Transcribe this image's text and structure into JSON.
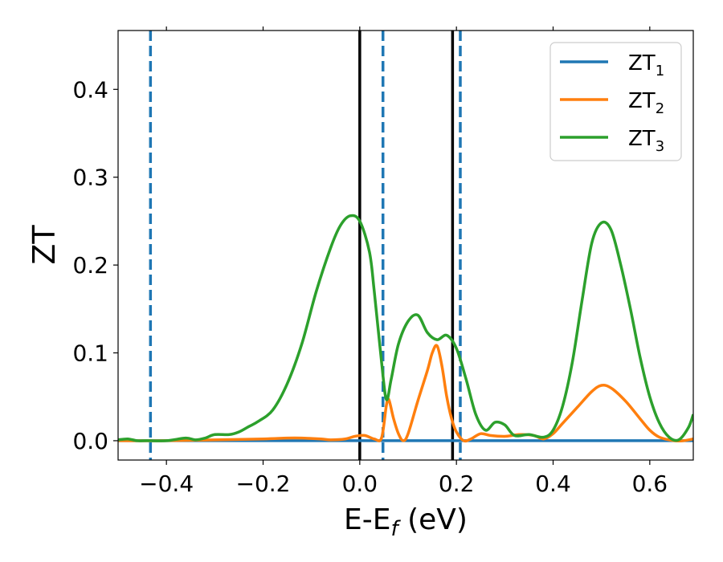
{
  "chart_data": {
    "type": "line",
    "title": "",
    "xlabel_main": "E-E",
    "xlabel_sub": "f",
    "xlabel_unit": " (eV)",
    "ylabel": "ZT",
    "xlim": [
      -0.5,
      0.69
    ],
    "ylim": [
      -0.022,
      0.467
    ],
    "x_ticks": [
      -0.4,
      -0.2,
      0.0,
      0.2,
      0.4,
      0.6
    ],
    "x_tick_labels": [
      "−0.4",
      "−0.2",
      "0.0",
      "0.2",
      "0.4",
      "0.6"
    ],
    "y_ticks": [
      0.0,
      0.1,
      0.2,
      0.3,
      0.4
    ],
    "y_tick_labels": [
      "0.0",
      "0.1",
      "0.2",
      "0.3",
      "0.4"
    ],
    "grid": false,
    "legend_position": "top-right",
    "series": [
      {
        "label_main": "ZT",
        "label_sub": "1",
        "color": "#1f77b4",
        "x": [
          -0.5,
          0.69
        ],
        "y": [
          0.0,
          0.0
        ]
      },
      {
        "label_main": "ZT",
        "label_sub": "2",
        "color": "#ff7f0e",
        "x": [
          -0.5,
          -0.4,
          -0.3,
          -0.2,
          -0.15,
          -0.12,
          -0.08,
          -0.06,
          -0.03,
          -0.01,
          0.01,
          0.03,
          0.045,
          0.055,
          0.06,
          0.07,
          0.08,
          0.09,
          0.1,
          0.12,
          0.14,
          0.15,
          0.16,
          0.17,
          0.18,
          0.19,
          0.2,
          0.215,
          0.23,
          0.25,
          0.27,
          0.3,
          0.33,
          0.36,
          0.38,
          0.4,
          0.42,
          0.45,
          0.48,
          0.5,
          0.52,
          0.55,
          0.58,
          0.6,
          0.62,
          0.65,
          0.67,
          0.69
        ],
        "y": [
          0.0,
          0.0,
          0.001,
          0.002,
          0.003,
          0.003,
          0.002,
          0.001,
          0.002,
          0.005,
          0.006,
          0.002,
          0.003,
          0.04,
          0.047,
          0.025,
          0.008,
          0.0,
          0.008,
          0.045,
          0.08,
          0.1,
          0.108,
          0.085,
          0.05,
          0.025,
          0.01,
          0.0,
          0.002,
          0.008,
          0.006,
          0.005,
          0.007,
          0.006,
          0.002,
          0.008,
          0.02,
          0.038,
          0.056,
          0.063,
          0.06,
          0.045,
          0.025,
          0.012,
          0.004,
          0.0,
          0.0,
          0.002
        ]
      },
      {
        "label_main": "ZT",
        "label_sub": "3",
        "color": "#2ca02c",
        "x": [
          -0.5,
          -0.48,
          -0.46,
          -0.44,
          -0.4,
          -0.36,
          -0.34,
          -0.32,
          -0.3,
          -0.27,
          -0.25,
          -0.23,
          -0.21,
          -0.18,
          -0.15,
          -0.12,
          -0.09,
          -0.06,
          -0.04,
          -0.02,
          0.0,
          0.02,
          0.03,
          0.045,
          0.055,
          0.065,
          0.08,
          0.1,
          0.12,
          0.14,
          0.16,
          0.18,
          0.2,
          0.22,
          0.24,
          0.26,
          0.28,
          0.3,
          0.32,
          0.35,
          0.38,
          0.4,
          0.42,
          0.44,
          0.46,
          0.48,
          0.5,
          0.52,
          0.54,
          0.56,
          0.58,
          0.6,
          0.62,
          0.64,
          0.66,
          0.68,
          0.69
        ],
        "y": [
          0.001,
          0.002,
          0.0,
          0.0,
          0.0,
          0.003,
          0.001,
          0.003,
          0.007,
          0.007,
          0.01,
          0.016,
          0.022,
          0.035,
          0.065,
          0.11,
          0.17,
          0.22,
          0.245,
          0.256,
          0.25,
          0.215,
          0.17,
          0.09,
          0.047,
          0.07,
          0.11,
          0.136,
          0.143,
          0.123,
          0.115,
          0.12,
          0.105,
          0.07,
          0.03,
          0.012,
          0.021,
          0.018,
          0.006,
          0.007,
          0.004,
          0.012,
          0.04,
          0.09,
          0.16,
          0.225,
          0.248,
          0.24,
          0.2,
          0.15,
          0.095,
          0.05,
          0.02,
          0.004,
          0.001,
          0.015,
          0.03
        ]
      }
    ],
    "vlines": [
      {
        "x": -0.433,
        "color": "#1f77b4",
        "style": "dashed"
      },
      {
        "x": 0.048,
        "color": "#1f77b4",
        "style": "dashed"
      },
      {
        "x": 0.208,
        "color": "#1f77b4",
        "style": "dashed"
      },
      {
        "x": 0.0,
        "color": "#000000",
        "style": "solid"
      },
      {
        "x": 0.192,
        "color": "#000000",
        "style": "solid"
      }
    ]
  }
}
